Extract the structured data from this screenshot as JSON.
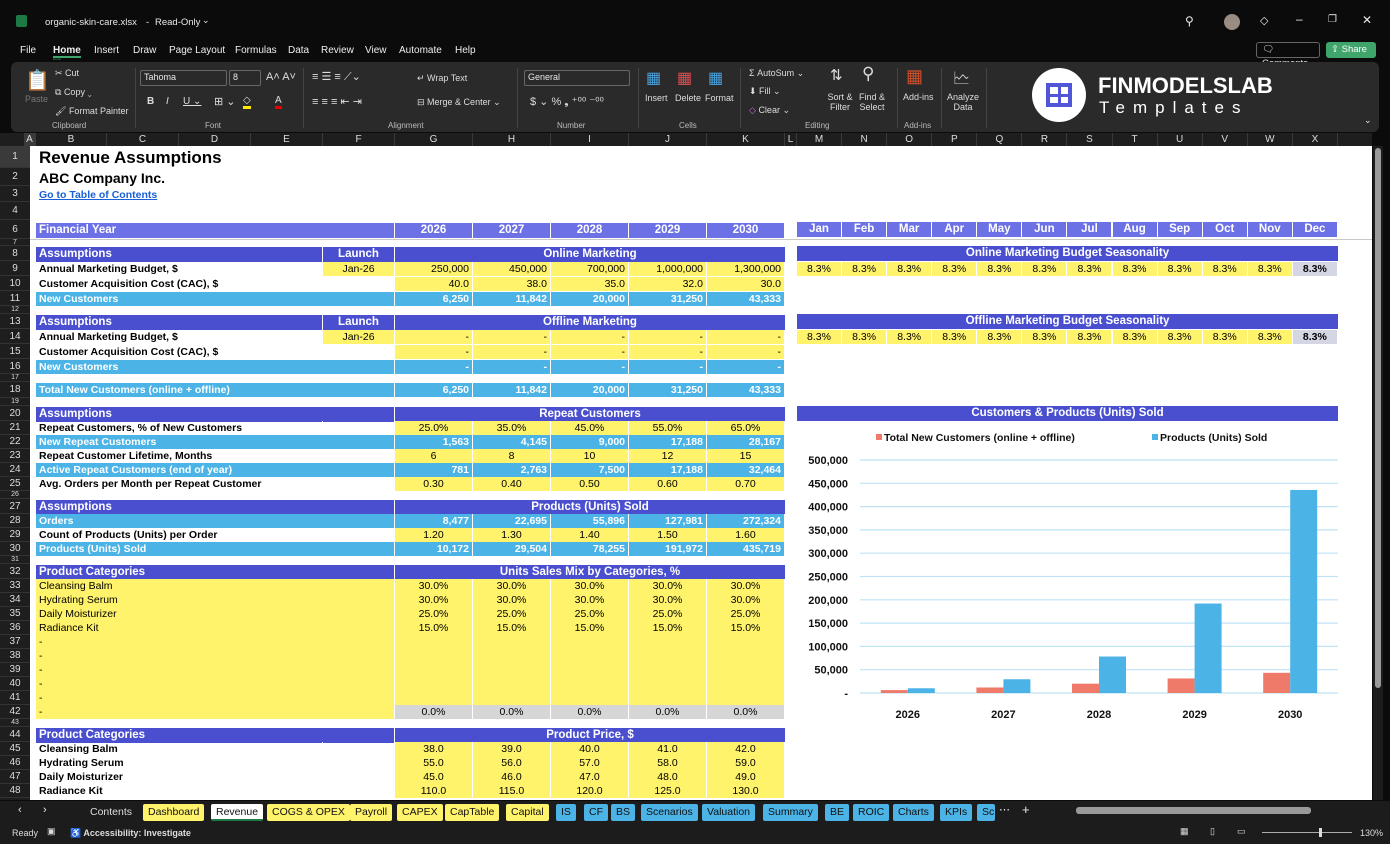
{
  "window": {
    "file_name": "organic-skin-care.xlsx",
    "mode": "Read-Only"
  },
  "menu": [
    "File",
    "Home",
    "Insert",
    "Draw",
    "Page Layout",
    "Formulas",
    "Data",
    "Review",
    "View",
    "Automate",
    "Help"
  ],
  "menu_active": "Home",
  "top_buttons": {
    "comments": "Comments",
    "share": "Share"
  },
  "ribbon": {
    "clipboard": {
      "paste": "Paste",
      "cut": "Cut",
      "copy": "Copy",
      "format_painter": "Format Painter",
      "group": "Clipboard"
    },
    "font": {
      "name": "Tahoma",
      "size": "8",
      "group": "Font"
    },
    "alignment": {
      "wrap_text": "Wrap Text",
      "merge_center": "Merge & Center",
      "group": "Alignment"
    },
    "number": {
      "format": "General",
      "group": "Number"
    },
    "cells": {
      "insert": "Insert",
      "delete": "Delete",
      "format": "Format",
      "group": "Cells"
    },
    "editing": {
      "autosum": "AutoSum",
      "fill": "Fill",
      "clear": "Clear",
      "sort_filter": "Sort & Filter",
      "find_select": "Find & Select",
      "group": "Editing"
    },
    "addins": {
      "addins": "Add-ins",
      "group": "Add-ins"
    },
    "analyze": "Analyze Data",
    "logo": {
      "brand": "FINMODELSLAB",
      "sub": "Templates"
    }
  },
  "columns": [
    "A",
    "B",
    "C",
    "D",
    "E",
    "F",
    "G",
    "H",
    "I",
    "J",
    "K",
    "L",
    "M",
    "N",
    "O",
    "P",
    "Q",
    "R",
    "S",
    "T",
    "U",
    "V",
    "W",
    "X"
  ],
  "sheet": {
    "title": "Revenue Assumptions",
    "company": "ABC Company Inc.",
    "toc_link": "Go to Table of Contents",
    "rows": [
      {
        "row": 6,
        "style": "fy",
        "label": "Financial Year",
        "values": [
          "2026",
          "2027",
          "2028",
          "2029",
          "2030"
        ]
      },
      {
        "row": 8,
        "style": "hdr",
        "label": "Assumptions",
        "launch": "Launch",
        "section": "Online Marketing"
      },
      {
        "row": 9,
        "style": "input",
        "label": "Annual Marketing Budget, $",
        "launch": "Jan-26",
        "values": [
          "250,000",
          "450,000",
          "700,000",
          "1,000,000",
          "1,300,000"
        ]
      },
      {
        "row": 10,
        "style": "input",
        "label": "Customer Acquisition Cost (CAC), $",
        "values": [
          "40.0",
          "38.0",
          "35.0",
          "32.0",
          "30.0"
        ]
      },
      {
        "row": 11,
        "style": "blue",
        "label": "New Customers",
        "values": [
          "6,250",
          "11,842",
          "20,000",
          "31,250",
          "43,333"
        ]
      },
      {
        "row": 13,
        "style": "hdr",
        "label": "Assumptions",
        "launch": "Launch",
        "section": "Offline Marketing"
      },
      {
        "row": 14,
        "style": "input",
        "label": "Annual Marketing Budget, $",
        "launch": "Jan-26",
        "values": [
          "-",
          "-",
          "-",
          "-",
          "-"
        ]
      },
      {
        "row": 15,
        "style": "input",
        "label": "Customer Acquisition Cost (CAC), $",
        "values": [
          "-",
          "-",
          "-",
          "-",
          "-"
        ]
      },
      {
        "row": 16,
        "style": "blue",
        "label": "New Customers",
        "values": [
          "-",
          "-",
          "-",
          "-",
          "-"
        ]
      },
      {
        "row": 18,
        "style": "blue",
        "label": "Total New Customers (online + offline)",
        "values": [
          "6,250",
          "11,842",
          "20,000",
          "31,250",
          "43,333"
        ]
      },
      {
        "row": 20,
        "style": "hdr",
        "label": "Assumptions",
        "section": "Repeat Customers"
      },
      {
        "row": 21,
        "style": "inputc",
        "label": "Repeat Customers, % of New Customers",
        "values": [
          "25.0%",
          "35.0%",
          "45.0%",
          "55.0%",
          "65.0%"
        ]
      },
      {
        "row": 22,
        "style": "blue",
        "label": "New Repeat Customers",
        "values": [
          "1,563",
          "4,145",
          "9,000",
          "17,188",
          "28,167"
        ]
      },
      {
        "row": 23,
        "style": "inputc",
        "label": "Repeat Customer Lifetime, Months",
        "values": [
          "6",
          "8",
          "10",
          "12",
          "15"
        ]
      },
      {
        "row": 24,
        "style": "blue",
        "label": "Active Repeat Customers (end of year)",
        "values": [
          "781",
          "2,763",
          "7,500",
          "17,188",
          "32,464"
        ]
      },
      {
        "row": 25,
        "style": "inputc",
        "label": "Avg. Orders per Month per Repeat Customer",
        "values": [
          "0.30",
          "0.40",
          "0.50",
          "0.60",
          "0.70"
        ]
      },
      {
        "row": 27,
        "style": "hdr",
        "label": "Assumptions",
        "section": "Products (Units) Sold"
      },
      {
        "row": 28,
        "style": "blue",
        "label": "Orders",
        "values": [
          "8,477",
          "22,695",
          "55,896",
          "127,981",
          "272,324"
        ]
      },
      {
        "row": 29,
        "style": "inputc",
        "label": "Count of Products (Units) per Order",
        "values": [
          "1.20",
          "1.30",
          "1.40",
          "1.50",
          "1.60"
        ]
      },
      {
        "row": 30,
        "style": "blue",
        "label": "Products (Units) Sold",
        "values": [
          "10,172",
          "29,504",
          "78,255",
          "191,972",
          "435,719"
        ]
      },
      {
        "row": 32,
        "style": "hdr",
        "label": "Product Categories",
        "section": "Units Sales Mix by Categories, %"
      },
      {
        "row": 33,
        "style": "yrow",
        "label": "Cleansing Balm",
        "values": [
          "30.0%",
          "30.0%",
          "30.0%",
          "30.0%",
          "30.0%"
        ]
      },
      {
        "row": 34,
        "style": "yrow",
        "label": "Hydrating Serum",
        "values": [
          "30.0%",
          "30.0%",
          "30.0%",
          "30.0%",
          "30.0%"
        ]
      },
      {
        "row": 35,
        "style": "yrow",
        "label": "Daily Moisturizer",
        "values": [
          "25.0%",
          "25.0%",
          "25.0%",
          "25.0%",
          "25.0%"
        ]
      },
      {
        "row": 36,
        "style": "yrow",
        "label": "Radiance Kit",
        "values": [
          "15.0%",
          "15.0%",
          "15.0%",
          "15.0%",
          "15.0%"
        ]
      },
      {
        "row": 37,
        "style": "yrow",
        "label": "-",
        "values": [
          "",
          "",
          "",
          "",
          ""
        ]
      },
      {
        "row": 38,
        "style": "yrow",
        "label": "-",
        "values": [
          "",
          "",
          "",
          "",
          ""
        ]
      },
      {
        "row": 39,
        "style": "yrow",
        "label": "-",
        "values": [
          "",
          "",
          "",
          "",
          ""
        ]
      },
      {
        "row": 40,
        "style": "yrow",
        "label": "-",
        "values": [
          "",
          "",
          "",
          "",
          ""
        ]
      },
      {
        "row": 41,
        "style": "yrow",
        "label": "-",
        "values": [
          "",
          "",
          "",
          "",
          ""
        ]
      },
      {
        "row": 42,
        "style": "total",
        "label": "-",
        "values": [
          "0.0%",
          "0.0%",
          "0.0%",
          "0.0%",
          "0.0%"
        ]
      },
      {
        "row": 44,
        "style": "hdr",
        "label": "Product Categories",
        "section": "Product Price, $"
      },
      {
        "row": 45,
        "style": "inputc",
        "label": "Cleansing Balm",
        "values": [
          "38.0",
          "39.0",
          "40.0",
          "41.0",
          "42.0"
        ]
      },
      {
        "row": 46,
        "style": "inputc",
        "label": "Hydrating Serum",
        "values": [
          "55.0",
          "56.0",
          "57.0",
          "58.0",
          "59.0"
        ]
      },
      {
        "row": 47,
        "style": "inputc",
        "label": "Daily Moisturizer",
        "values": [
          "45.0",
          "46.0",
          "47.0",
          "48.0",
          "49.0"
        ]
      },
      {
        "row": 48,
        "style": "inputc",
        "label": "Radiance Kit",
        "values": [
          "110.0",
          "115.0",
          "120.0",
          "125.0",
          "130.0"
        ]
      }
    ],
    "months": [
      "Jan",
      "Feb",
      "Mar",
      "Apr",
      "May",
      "Jun",
      "Jul",
      "Aug",
      "Sep",
      "Oct",
      "Nov",
      "Dec"
    ],
    "online_seasonality": {
      "title": "Online Marketing Budget Seasonality",
      "values": [
        "8.3%",
        "8.3%",
        "8.3%",
        "8.3%",
        "8.3%",
        "8.3%",
        "8.3%",
        "8.3%",
        "8.3%",
        "8.3%",
        "8.3%",
        "8.3%"
      ]
    },
    "offline_seasonality": {
      "title": "Offline Marketing Budget Seasonality",
      "values": [
        "8.3%",
        "8.3%",
        "8.3%",
        "8.3%",
        "8.3%",
        "8.3%",
        "8.3%",
        "8.3%",
        "8.3%",
        "8.3%",
        "8.3%",
        "8.3%"
      ]
    }
  },
  "chart_data": {
    "type": "bar",
    "title": "Customers & Products (Units) Sold",
    "categories": [
      "2026",
      "2027",
      "2028",
      "2029",
      "2030"
    ],
    "series": [
      {
        "name": "Total New Customers (online + offline)",
        "values": [
          6250,
          11842,
          20000,
          31250,
          43333
        ],
        "color": "#f07a6a"
      },
      {
        "name": "Products (Units) Sold",
        "values": [
          10172,
          29504,
          78255,
          191972,
          435719
        ],
        "color": "#4bb3e6"
      }
    ],
    "ylim": [
      0,
      500000
    ],
    "yticks": [
      "-",
      "50,000",
      "100,000",
      "150,000",
      "200,000",
      "250,000",
      "300,000",
      "350,000",
      "400,000",
      "450,000",
      "500,000"
    ],
    "grid": true,
    "legend": "top"
  },
  "sheet_tabs": [
    {
      "label": "Contents",
      "color": "none"
    },
    {
      "label": "Dashboard",
      "color": "#fff36b"
    },
    {
      "label": "Revenue",
      "color": "active"
    },
    {
      "label": "COGS & OPEX",
      "color": "#fff36b"
    },
    {
      "label": "Payroll",
      "color": "#fff36b"
    },
    {
      "label": "CAPEX",
      "color": "#fff36b"
    },
    {
      "label": "CapTable",
      "color": "#fff36b"
    },
    {
      "label": "Capital",
      "color": "#fff36b"
    },
    {
      "label": "IS",
      "color": "#4bb3e6"
    },
    {
      "label": "CF",
      "color": "#4bb3e6"
    },
    {
      "label": "BS",
      "color": "#4bb3e6"
    },
    {
      "label": "Scenarios",
      "color": "#4bb3e6"
    },
    {
      "label": "Valuation",
      "color": "#4bb3e6"
    },
    {
      "label": "Summary",
      "color": "#4bb3e6"
    },
    {
      "label": "BE",
      "color": "#4bb3e6"
    },
    {
      "label": "ROIC",
      "color": "#4bb3e6"
    },
    {
      "label": "Charts",
      "color": "#4bb3e6"
    },
    {
      "label": "KPIs",
      "color": "#4bb3e6"
    },
    {
      "label": "Sc",
      "color": "#4bb3e6"
    }
  ],
  "status": {
    "ready": "Ready",
    "accessibility": "Accessibility: Investigate",
    "zoom": "130%",
    "zoom_level": 0.65
  }
}
